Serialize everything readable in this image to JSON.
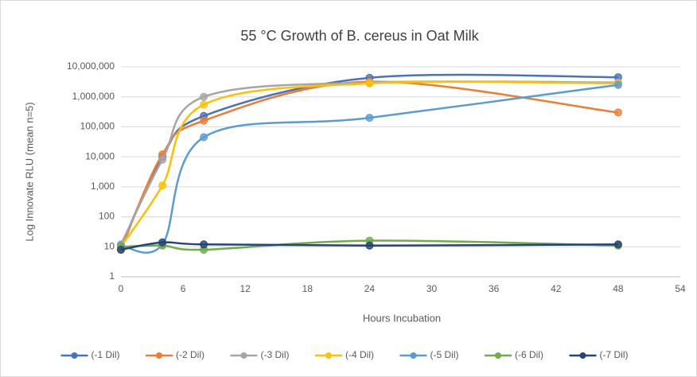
{
  "chart_data": {
    "type": "line",
    "title": "55 °C Growth of B. cereus in Oat Milk",
    "x_label": "Hours Incubation",
    "y_label": "Log Innovate RLU (mean n=5)",
    "x": [
      0,
      4,
      8,
      24,
      48
    ],
    "xlim": [
      0,
      54
    ],
    "xticks": [
      0,
      6,
      12,
      18,
      24,
      30,
      36,
      42,
      48,
      54
    ],
    "ylim": [
      1,
      10000000
    ],
    "log_y": true,
    "yticks": [
      1,
      10,
      100,
      {
        "value": 1000,
        "label": "1,000"
      },
      {
        "value": 10000,
        "label": "10,000"
      },
      {
        "value": 100000,
        "label": "100,000"
      },
      {
        "value": 1000000,
        "label": "1,000,000"
      },
      {
        "value": 10000000,
        "label": "10,000,000"
      }
    ],
    "grid": true,
    "smooth": true,
    "legend": "bottom",
    "series": [
      {
        "name": "(-1 Dil)",
        "color": "#4472c4",
        "values": [
          10,
          10000,
          230000,
          4300000,
          4500000
        ]
      },
      {
        "name": "(-2 Dil)",
        "color": "#ed7d31",
        "values": [
          8,
          12000,
          160000,
          3200000,
          300000
        ]
      },
      {
        "name": "(-3 Dil)",
        "color": "#a5a5a5",
        "values": [
          12,
          8000,
          1000000,
          3000000,
          3000000
        ]
      },
      {
        "name": "(-4 Dil)",
        "color": "#ffc000",
        "values": [
          10,
          1100,
          550000,
          2800000,
          2800000
        ]
      },
      {
        "name": "(-5 Dil)",
        "color": "#5b9bd5",
        "values": [
          11,
          12,
          45000,
          200000,
          2500000
        ]
      },
      {
        "name": "(-6 Dil)",
        "color": "#70ad47",
        "values": [
          10,
          11,
          8,
          16,
          11
        ]
      },
      {
        "name": "(-7 Dil)",
        "color": "#264478",
        "values": [
          8,
          14,
          12,
          11,
          12
        ]
      }
    ]
  }
}
